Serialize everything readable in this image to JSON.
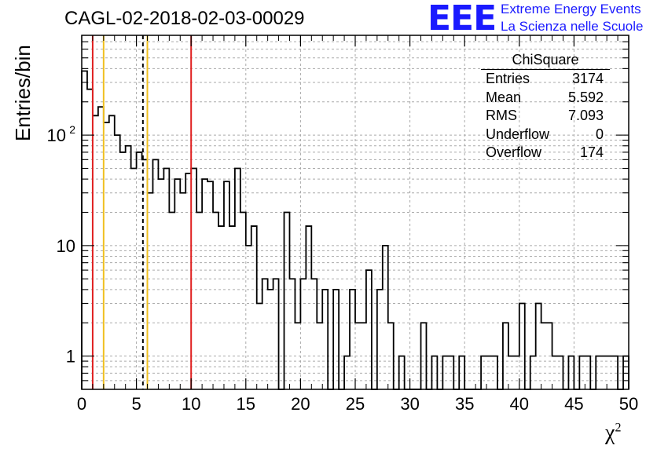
{
  "title": "CAGL-02-2018-02-03-00029",
  "logo": {
    "mark": "EEE",
    "line1": "Extreme Energy Events",
    "line2": "La Scienza nelle Scuole"
  },
  "stats_box": {
    "title": "ChiSquare",
    "rows": [
      {
        "key": "Entries",
        "value": "3174"
      },
      {
        "key": "Mean",
        "value": "5.592"
      },
      {
        "key": "RMS",
        "value": "7.093"
      },
      {
        "key": "Underflow",
        "value": "0"
      },
      {
        "key": "Overflow",
        "value": "174"
      }
    ]
  },
  "chart_data": {
    "type": "histogram",
    "title": "CAGL-02-2018-02-03-00029",
    "xlabel": "χ",
    "xlabel_sup": "2",
    "ylabel": "Entries/bin",
    "xlim": [
      0,
      50
    ],
    "ylim": [
      0.5,
      800
    ],
    "yscale": "log",
    "grid": true,
    "bin_width": 0.5,
    "x_ticks": [
      0,
      5,
      10,
      15,
      20,
      25,
      30,
      35,
      40,
      45,
      50
    ],
    "y_ticks": [
      {
        "value": 1,
        "label": "1"
      },
      {
        "value": 10,
        "label": "10"
      },
      {
        "value": 100,
        "label": "10",
        "sup": "2"
      }
    ],
    "counts": [
      380,
      260,
      150,
      180,
      130,
      150,
      100,
      70,
      80,
      50,
      70,
      60,
      30,
      60,
      40,
      50,
      20,
      40,
      30,
      45,
      50,
      20,
      40,
      38,
      20,
      15,
      38,
      15,
      50,
      20,
      10,
      15,
      3,
      5,
      4,
      5,
      0,
      20,
      5,
      2,
      5,
      15,
      5,
      2,
      4,
      0,
      4,
      0,
      1,
      4,
      2,
      2,
      6,
      0,
      4,
      10,
      2,
      0,
      1,
      0,
      0,
      0,
      2,
      0,
      1,
      0,
      1,
      1,
      0,
      1,
      0,
      0,
      0,
      1,
      1,
      1,
      0,
      2,
      1,
      1,
      3,
      0,
      1,
      3,
      2,
      2,
      1,
      1,
      0,
      1,
      0,
      1,
      1,
      0,
      1,
      1,
      1,
      1,
      0,
      1
    ],
    "vertical_lines": [
      {
        "x": 1,
        "color": "#e02020",
        "style": "solid"
      },
      {
        "x": 2,
        "color": "#f0c020",
        "style": "solid"
      },
      {
        "x": 5.592,
        "color": "#000000",
        "style": "dashed"
      },
      {
        "x": 6,
        "color": "#f0c020",
        "style": "solid"
      },
      {
        "x": 10,
        "color": "#e02020",
        "style": "solid"
      }
    ]
  }
}
